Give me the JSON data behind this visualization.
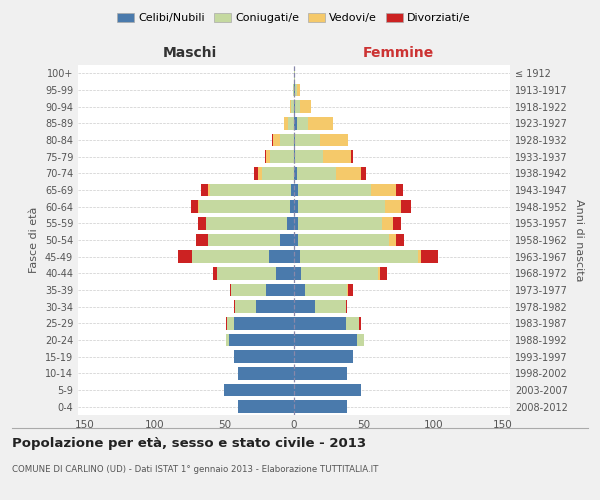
{
  "age_groups": [
    "0-4",
    "5-9",
    "10-14",
    "15-19",
    "20-24",
    "25-29",
    "30-34",
    "35-39",
    "40-44",
    "45-49",
    "50-54",
    "55-59",
    "60-64",
    "65-69",
    "70-74",
    "75-79",
    "80-84",
    "85-89",
    "90-94",
    "95-99",
    "100+"
  ],
  "birth_years": [
    "2008-2012",
    "2003-2007",
    "1998-2002",
    "1993-1997",
    "1988-1992",
    "1983-1987",
    "1978-1982",
    "1973-1977",
    "1968-1972",
    "1963-1967",
    "1958-1962",
    "1953-1957",
    "1948-1952",
    "1943-1947",
    "1938-1942",
    "1933-1937",
    "1928-1932",
    "1923-1927",
    "1918-1922",
    "1913-1917",
    "≤ 1912"
  ],
  "males": {
    "celibe": [
      40,
      50,
      40,
      43,
      47,
      43,
      27,
      20,
      13,
      18,
      10,
      5,
      3,
      2,
      0,
      0,
      0,
      0,
      0,
      0,
      0
    ],
    "coniugato": [
      0,
      0,
      0,
      0,
      2,
      5,
      15,
      25,
      42,
      55,
      52,
      58,
      65,
      58,
      23,
      17,
      10,
      4,
      2,
      1,
      0
    ],
    "vedovo": [
      0,
      0,
      0,
      0,
      0,
      0,
      0,
      0,
      0,
      0,
      0,
      0,
      1,
      2,
      3,
      3,
      5,
      3,
      1,
      0,
      0
    ],
    "divorziato": [
      0,
      0,
      0,
      0,
      0,
      1,
      1,
      1,
      3,
      10,
      8,
      6,
      5,
      5,
      3,
      1,
      1,
      0,
      0,
      0,
      0
    ]
  },
  "females": {
    "nubile": [
      38,
      48,
      38,
      42,
      45,
      37,
      15,
      8,
      5,
      4,
      3,
      3,
      3,
      3,
      2,
      1,
      1,
      2,
      1,
      1,
      0
    ],
    "coniugata": [
      0,
      0,
      0,
      0,
      5,
      10,
      22,
      30,
      55,
      85,
      65,
      60,
      62,
      52,
      28,
      20,
      18,
      8,
      3,
      1,
      1
    ],
    "vedova": [
      0,
      0,
      0,
      0,
      0,
      0,
      0,
      1,
      2,
      2,
      5,
      8,
      12,
      18,
      18,
      20,
      20,
      18,
      8,
      2,
      0
    ],
    "divorziata": [
      0,
      0,
      0,
      0,
      0,
      1,
      1,
      3,
      5,
      12,
      6,
      6,
      7,
      5,
      4,
      1,
      0,
      0,
      0,
      0,
      0
    ]
  },
  "colors": {
    "celibe": "#4a7aac",
    "coniugato": "#c5d9a0",
    "vedovo": "#f5c96a",
    "divorziato": "#cc2222"
  },
  "xlim": 155,
  "title": "Popolazione per età, sesso e stato civile - 2013",
  "subtitle": "COMUNE DI CARLINO (UD) - Dati ISTAT 1° gennaio 2013 - Elaborazione TUTTITALIA.IT",
  "ylabel_left": "Fasce di età",
  "ylabel_right": "Anni di nascita",
  "xlabel_maschi": "Maschi",
  "xlabel_femmine": "Femmine",
  "legend_labels": [
    "Celibi/Nubili",
    "Coniugati/e",
    "Vedovi/e",
    "Divorziati/e"
  ],
  "bg_color": "#f0f0f0",
  "plot_bg": "#ffffff",
  "maschi_color": "#333333",
  "femmine_color": "#cc3333"
}
